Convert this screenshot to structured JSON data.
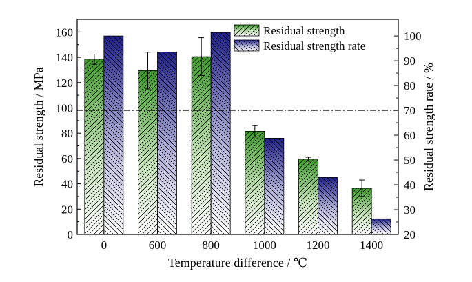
{
  "chart_data": {
    "type": "bar",
    "xlabel": "Temperature difference / ℃",
    "ylabel_left": "Residual strength / MPa",
    "ylabel_right": "Residual strength rate / %",
    "categories": [
      "0",
      "600",
      "800",
      "1000",
      "1200",
      "1400"
    ],
    "ylim_left": [
      0,
      170
    ],
    "ylim_right": [
      20,
      106.7
    ],
    "yticks_left": [
      "0",
      "20",
      "40",
      "60",
      "80",
      "100",
      "120",
      "140",
      "160"
    ],
    "yticks_right": [
      "20",
      "30",
      "40",
      "50",
      "60",
      "70",
      "80",
      "90",
      "100"
    ],
    "grid": false,
    "legend_position": "top-right",
    "reference_line": {
      "axis": "right",
      "value": 70,
      "style": "dash-dot"
    },
    "series": [
      {
        "name": "Residual strength",
        "axis": "left",
        "values": [
          138.5,
          129.5,
          140.5,
          81.5,
          59.5,
          36.5
        ],
        "error": [
          4,
          14.5,
          15,
          4.5,
          1.5,
          6.5
        ],
        "color": "#3e9a2a"
      },
      {
        "name": "Residual strength rate",
        "axis": "right",
        "values": [
          100,
          93.5,
          101.4,
          58.8,
          43,
          26.3
        ],
        "color": "#1f1f8a"
      }
    ]
  }
}
